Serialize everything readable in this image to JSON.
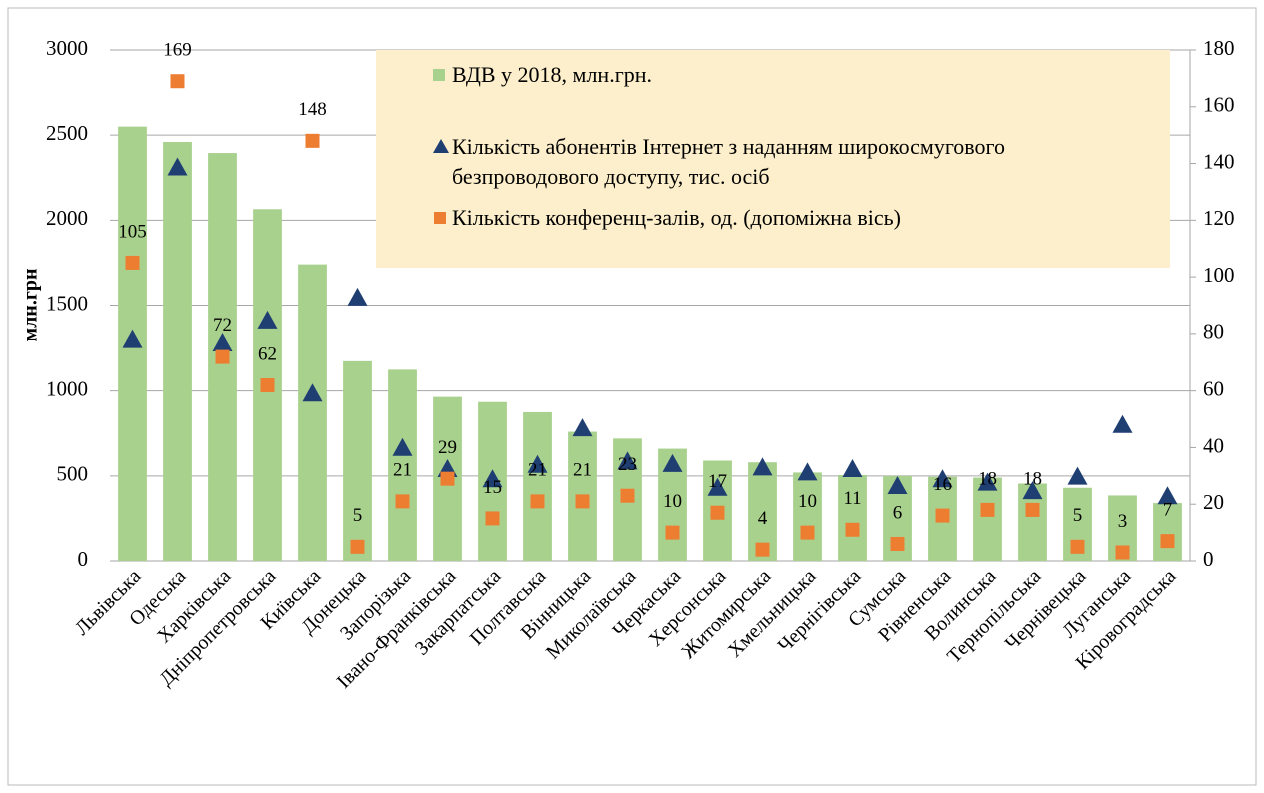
{
  "chart_data": {
    "type": "bar",
    "y_label": "млн.грн",
    "categories": [
      "Львівська",
      "Одеська",
      "Харківська",
      "Дніпропетровська",
      "Київська",
      "Донецька",
      "Запорізька",
      "Івано-Франківська",
      "Закарпатська",
      "Полтавська",
      "Вінницька",
      "Миколаївська",
      "Черкаська",
      "Херсонська",
      "Житомирська",
      "Хмельницька",
      "Чернігівська",
      "Сумська",
      "Рівненська",
      "Волинська",
      "Тернопільська",
      "Чернівецька",
      "Луганська",
      "Кіровоградська"
    ],
    "series": [
      {
        "name": "ВДВ у 2018, млн.грн.",
        "color": "#a9d18e",
        "type": "bar",
        "values": [
          2550,
          2460,
          2395,
          2065,
          1740,
          1175,
          1125,
          965,
          935,
          875,
          760,
          720,
          660,
          590,
          580,
          520,
          505,
          500,
          495,
          490,
          455,
          430,
          385,
          340
        ]
      },
      {
        "name": "Кількість абонентів Інтернет з наданням широкосмугового безпроводового доступу, тис. осіб",
        "color": "#1f3f73",
        "type": "triangle",
        "values": [
          1300,
          2310,
          1280,
          1410,
          985,
          1545,
          665,
          540,
          480,
          565,
          780,
          585,
          570,
          430,
          550,
          520,
          540,
          440,
          480,
          460,
          410,
          495,
          800,
          380
        ]
      },
      {
        "name": "Кількість конференц-залів, од. (допоміжна вісь)",
        "color": "#ed7d31",
        "type": "square",
        "axis": "y2",
        "data_labels": true,
        "values": [
          105,
          169,
          72,
          62,
          148,
          5,
          21,
          29,
          15,
          21,
          21,
          23,
          10,
          17,
          4,
          10,
          11,
          6,
          16,
          18,
          18,
          5,
          3,
          7
        ]
      }
    ],
    "ylim": [
      0,
      3000
    ],
    "yticks": [
      0,
      500,
      1000,
      1500,
      2000,
      2500,
      3000
    ],
    "y2lim": [
      0,
      180
    ],
    "y2ticks": [
      0,
      20,
      40,
      60,
      80,
      100,
      120,
      140,
      160,
      180
    ],
    "grid": true,
    "legend": "top-right"
  }
}
